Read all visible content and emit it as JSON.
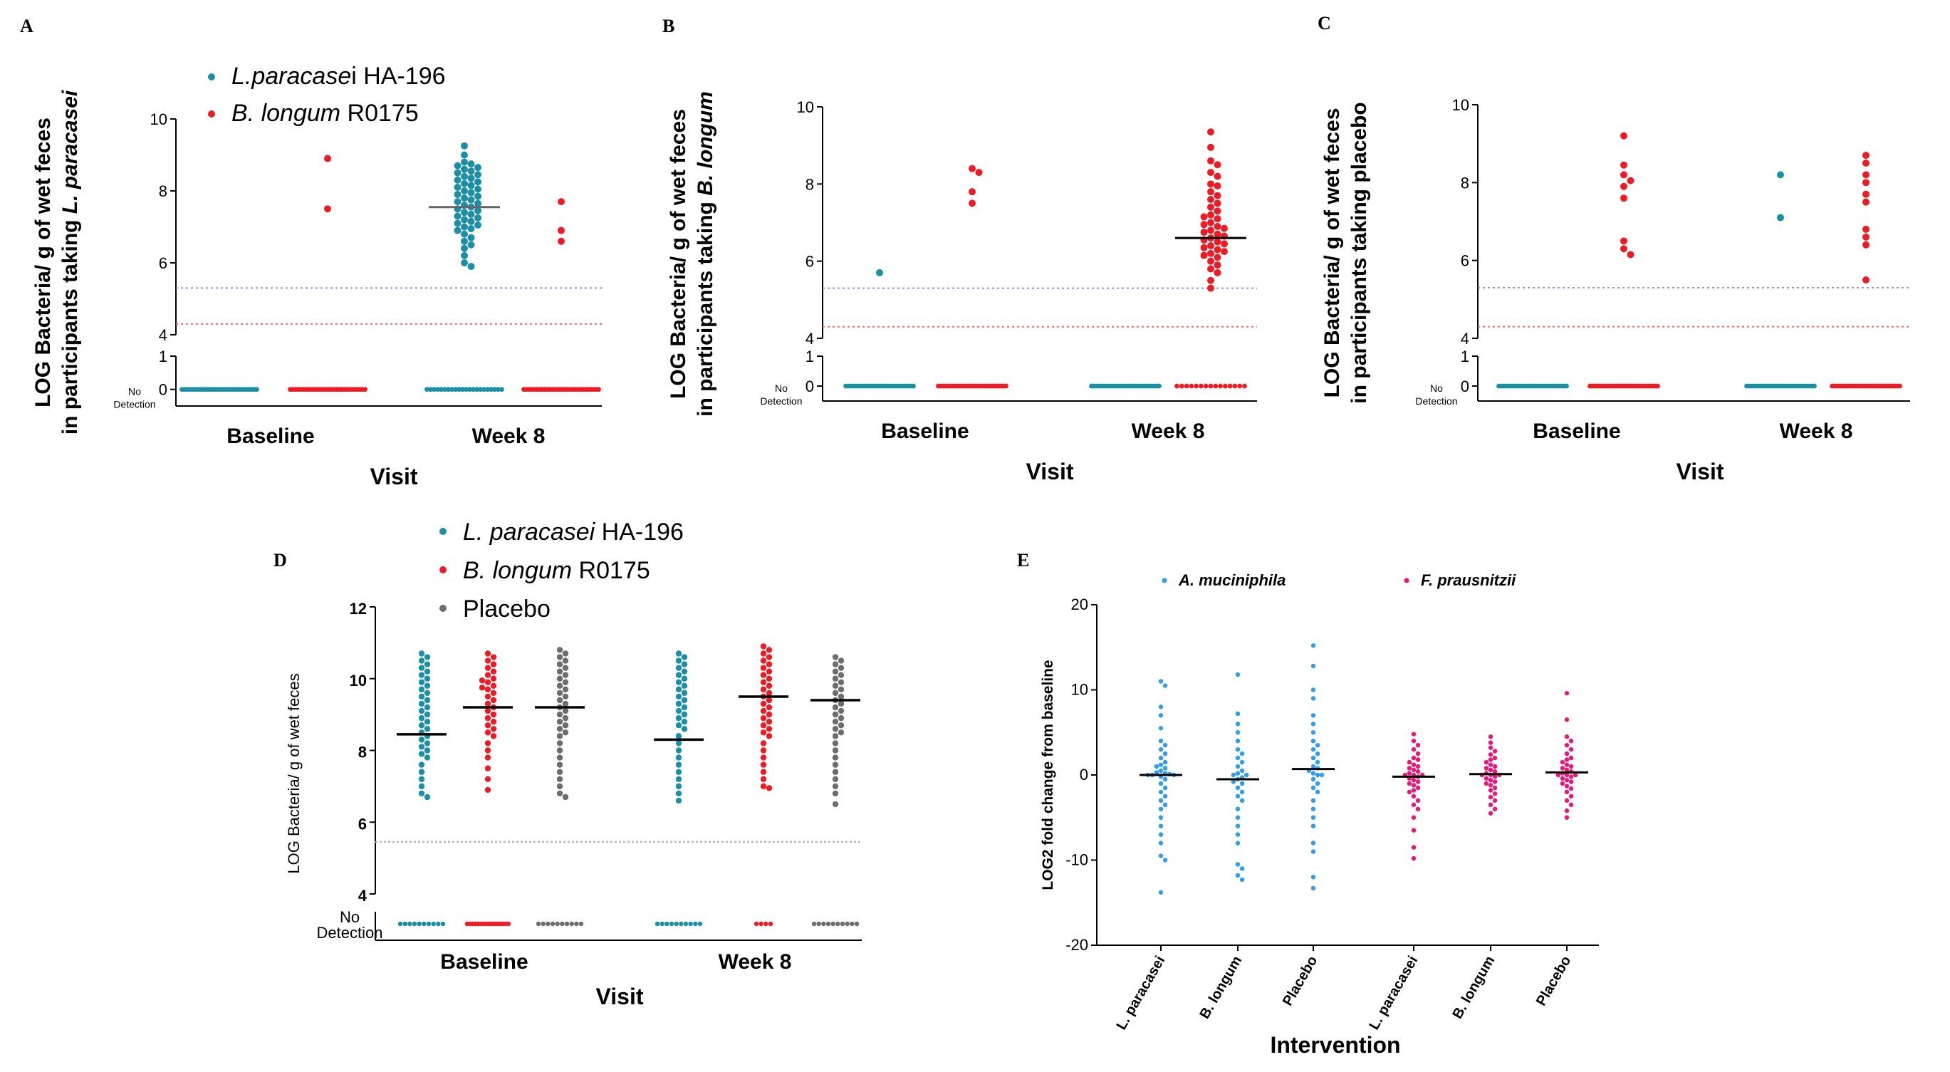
{
  "colors": {
    "teal": "#1b8fa5",
    "red": "#ed1c24",
    "gray": "#6d6d6d",
    "blue": "#2e9cf0",
    "pink": "#e9177a",
    "dashBlue": "#8f91e8",
    "dashRed": "#f06a6a",
    "dashGray": "#b8b8b8",
    "mean": "#000000"
  },
  "panels": [
    {
      "id": "A",
      "label": "A",
      "type": "scatter",
      "title": "",
      "ylabel_lines": [
        "LOG Bacteria/ g of wet feces",
        "in participants taking L. paracasei"
      ],
      "ylabel_italic": "L. paracasei",
      "xlabel": "Visit",
      "categories": [
        "Baseline",
        "Week 8"
      ],
      "no_detection_label": [
        "No",
        "Detection"
      ],
      "yticks_upper": [
        "10",
        "8",
        "6",
        "4"
      ],
      "yticks_lower": [
        "1",
        "0"
      ],
      "ylim_upper": [
        4,
        10
      ],
      "ylim_lower": [
        -0.5,
        1
      ],
      "legend": [
        {
          "name": "L.paracasei HA-196",
          "italic": "L.paracase",
          "rest": "i HA-196",
          "color": "teal"
        },
        {
          "name": "B. longum R0175",
          "italic": "B. longum",
          "rest": " R0175",
          "color": "red"
        }
      ],
      "thresholds": [
        {
          "value": 5.3,
          "color": "dashBlue"
        },
        {
          "value": 4.3,
          "color": "dashRed"
        }
      ],
      "series": [
        {
          "group": 0,
          "color": "teal",
          "detected": [],
          "nondetected_count": 30,
          "mean": null
        },
        {
          "group": 0,
          "color": "red",
          "detected": [
            8.9,
            7.5
          ],
          "nondetected_count": 30,
          "mean": null
        },
        {
          "group": 1,
          "color": "teal",
          "detected": [
            9.25,
            9.0,
            8.8,
            8.75,
            8.7,
            8.65,
            8.6,
            8.55,
            8.5,
            8.45,
            8.4,
            8.35,
            8.3,
            8.25,
            8.2,
            8.15,
            8.1,
            8.05,
            8.0,
            7.95,
            7.9,
            7.85,
            7.8,
            7.75,
            7.7,
            7.65,
            7.6,
            7.55,
            7.5,
            7.45,
            7.4,
            7.35,
            7.3,
            7.25,
            7.2,
            7.15,
            7.1,
            7.05,
            7.0,
            6.95,
            6.9,
            6.8,
            6.7,
            6.6,
            6.5,
            6.4,
            6.2,
            6.0,
            5.9
          ],
          "nondetected_count": 22,
          "mean": 7.55
        },
        {
          "group": 1,
          "color": "red",
          "detected": [
            7.7,
            6.9,
            6.6
          ],
          "nondetected_count": 30,
          "mean": null
        }
      ]
    },
    {
      "id": "B",
      "label": "B",
      "type": "scatter",
      "ylabel_lines": [
        "LOG Bacteria/ g of wet feces",
        "in participants taking B. longum"
      ],
      "ylabel_italic": "B. longum",
      "xlabel": "Visit",
      "categories": [
        "Baseline",
        "Week 8"
      ],
      "no_detection_label": [
        "No",
        "Detection"
      ],
      "yticks_upper": [
        "10",
        "8",
        "6",
        "4"
      ],
      "yticks_lower": [
        "1",
        "0"
      ],
      "ylim_upper": [
        4,
        10
      ],
      "ylim_lower": [
        -0.5,
        1
      ],
      "thresholds": [
        {
          "value": 5.3,
          "color": "dashBlue"
        },
        {
          "value": 4.3,
          "color": "dashRed"
        }
      ],
      "series": [
        {
          "group": 0,
          "color": "teal",
          "detected": [
            5.7
          ],
          "nondetected_count": 30,
          "mean": null
        },
        {
          "group": 0,
          "color": "red",
          "detected": [
            8.4,
            8.3,
            7.8,
            7.5
          ],
          "nondetected_count": 30,
          "mean": null
        },
        {
          "group": 1,
          "color": "teal",
          "detected": [],
          "nondetected_count": 30,
          "mean": null
        },
        {
          "group": 1,
          "color": "red",
          "detected": [
            9.35,
            8.95,
            8.6,
            8.5,
            8.3,
            8.2,
            8.0,
            7.95,
            7.8,
            7.7,
            7.6,
            7.5,
            7.4,
            7.3,
            7.2,
            7.15,
            7.1,
            7.0,
            6.95,
            6.9,
            6.85,
            6.8,
            6.75,
            6.7,
            6.65,
            6.6,
            6.55,
            6.5,
            6.45,
            6.4,
            6.35,
            6.3,
            6.25,
            6.2,
            6.15,
            6.1,
            6.0,
            5.9,
            5.8,
            5.7,
            5.5,
            5.3
          ],
          "nondetected_count": 15,
          "mean": 6.6
        }
      ]
    },
    {
      "id": "C",
      "label": "C",
      "type": "scatter",
      "ylabel_lines": [
        "LOG Bacteria/ g of wet feces",
        "in participants taking placebo"
      ],
      "ylabel_italic": "",
      "xlabel": "Visit",
      "categories": [
        "Baseline",
        "Week 8"
      ],
      "no_detection_label": [
        "No",
        "Detection"
      ],
      "yticks_upper": [
        "10",
        "8",
        "6",
        "4"
      ],
      "yticks_lower": [
        "1",
        "0"
      ],
      "ylim_upper": [
        4,
        10
      ],
      "ylim_lower": [
        -0.5,
        1
      ],
      "thresholds": [
        {
          "value": 5.3,
          "color": "dashBlue"
        },
        {
          "value": 4.3,
          "color": "dashRed"
        }
      ],
      "series": [
        {
          "group": 0,
          "color": "teal",
          "detected": [],
          "nondetected_count": 30,
          "mean": null
        },
        {
          "group": 0,
          "color": "red",
          "detected": [
            9.2,
            8.45,
            8.2,
            8.05,
            7.9,
            7.6,
            6.5,
            6.3,
            6.15
          ],
          "nondetected_count": 30,
          "mean": null
        },
        {
          "group": 1,
          "color": "teal",
          "detected": [
            8.2,
            7.1
          ],
          "nondetected_count": 30,
          "mean": null
        },
        {
          "group": 1,
          "color": "red",
          "detected": [
            8.7,
            8.5,
            8.2,
            8.0,
            7.7,
            7.5,
            6.8,
            6.6,
            6.4,
            5.5
          ],
          "nondetected_count": 30,
          "mean": null
        }
      ]
    },
    {
      "id": "D",
      "label": "D",
      "type": "scatter",
      "ylabel_lines": [
        "LOG Bacteria/ g of wet feces"
      ],
      "xlabel": "Visit",
      "categories": [
        "Baseline",
        "Week 8"
      ],
      "no_detection_label": [
        "No",
        "Detection"
      ],
      "yticks_upper": [
        "12",
        "10",
        "8",
        "6",
        "4"
      ],
      "ylim_upper": [
        4,
        12
      ],
      "legend": [
        {
          "name": "L. paracasei HA-196",
          "italic": "L. paracasei",
          "rest": " HA-196",
          "color": "teal"
        },
        {
          "name": "B. longum R0175",
          "italic": "B. longum",
          "rest": " R0175",
          "color": "red"
        },
        {
          "name": "Placebo",
          "italic": "",
          "rest": "Placebo",
          "color": "gray"
        }
      ],
      "thresholds": [
        {
          "value": 5.45,
          "color": "dashGray"
        }
      ],
      "series": [
        {
          "group": 0,
          "color": "teal",
          "detected": [
            10.7,
            10.6,
            10.5,
            10.4,
            10.3,
            10.2,
            10.1,
            10.0,
            9.9,
            9.8,
            9.7,
            9.6,
            9.5,
            9.4,
            9.3,
            9.2,
            9.1,
            9.0,
            8.9,
            8.8,
            8.7,
            8.6,
            8.5,
            8.4,
            8.3,
            8.2,
            8.1,
            8.0,
            7.9,
            7.8,
            7.6,
            7.4,
            7.2,
            7.0,
            6.8,
            6.7
          ],
          "nondetected_count": 10,
          "mean": 8.45
        },
        {
          "group": 0,
          "color": "red",
          "detected": [
            10.7,
            10.6,
            10.5,
            10.4,
            10.3,
            10.2,
            10.1,
            10.0,
            9.95,
            9.9,
            9.8,
            9.75,
            9.7,
            9.6,
            9.5,
            9.4,
            9.3,
            9.2,
            9.1,
            9.0,
            8.9,
            8.8,
            8.7,
            8.6,
            8.5,
            8.4,
            8.2,
            8.0,
            7.8,
            7.5,
            7.2,
            6.9
          ],
          "nondetected_count": 16,
          "mean": 9.2
        },
        {
          "group": 0,
          "color": "gray",
          "detected": [
            10.8,
            10.7,
            10.6,
            10.5,
            10.4,
            10.3,
            10.2,
            10.1,
            10.0,
            9.9,
            9.8,
            9.7,
            9.6,
            9.5,
            9.4,
            9.3,
            9.2,
            9.1,
            9.0,
            8.9,
            8.8,
            8.7,
            8.6,
            8.5,
            8.4,
            8.2,
            8.0,
            7.8,
            7.6,
            7.4,
            7.2,
            7.0,
            6.8,
            6.7
          ],
          "nondetected_count": 10,
          "mean": 9.2
        },
        {
          "group": 1,
          "color": "teal",
          "detected": [
            10.7,
            10.6,
            10.5,
            10.4,
            10.3,
            10.2,
            10.1,
            10.0,
            9.9,
            9.8,
            9.7,
            9.6,
            9.5,
            9.4,
            9.3,
            9.2,
            9.1,
            9.0,
            8.9,
            8.8,
            8.7,
            8.6,
            8.4,
            8.2,
            8.0,
            7.8,
            7.6,
            7.4,
            7.2,
            7.0,
            6.8,
            6.6
          ],
          "nondetected_count": 10,
          "mean": 8.3
        },
        {
          "group": 1,
          "color": "red",
          "detected": [
            10.9,
            10.8,
            10.7,
            10.6,
            10.5,
            10.4,
            10.3,
            10.2,
            10.1,
            10.0,
            9.9,
            9.8,
            9.7,
            9.6,
            9.5,
            9.4,
            9.3,
            9.2,
            9.1,
            9.0,
            8.9,
            8.8,
            8.7,
            8.6,
            8.5,
            8.4,
            8.2,
            8.0,
            7.8,
            7.6,
            7.4,
            7.2,
            7.0,
            6.95
          ],
          "nondetected_count": 4,
          "mean": 9.5
        },
        {
          "group": 1,
          "color": "gray",
          "detected": [
            10.6,
            10.5,
            10.4,
            10.3,
            10.2,
            10.1,
            10.0,
            9.9,
            9.8,
            9.7,
            9.6,
            9.5,
            9.4,
            9.3,
            9.2,
            9.1,
            9.0,
            8.9,
            8.8,
            8.7,
            8.6,
            8.5,
            8.4,
            8.2,
            8.0,
            7.8,
            7.6,
            7.4,
            7.2,
            7.0,
            6.8,
            6.5
          ],
          "nondetected_count": 10,
          "mean": 9.4
        }
      ]
    },
    {
      "id": "E",
      "label": "E",
      "type": "scatter",
      "ylabel_lines": [
        "LOG2 fold change from baseline"
      ],
      "xlabel": "Intervention",
      "categories": [
        "L. paracasei",
        "B. longum",
        "Placebo",
        "L. paracasei",
        "B. longum",
        "Placebo"
      ],
      "yticks": [
        "20",
        "10",
        "0",
        "-10",
        "-20"
      ],
      "ylim": [
        -20,
        20
      ],
      "legend": [
        {
          "name": "A. muciniphila",
          "color": "blue"
        },
        {
          "name": "F. prausnitzii",
          "color": "pink"
        }
      ],
      "series": [
        {
          "group": 0,
          "color": "blue",
          "values": [
            11.0,
            10.5,
            8.0,
            7.0,
            5.5,
            4.0,
            3.5,
            3.0,
            2.5,
            2.0,
            1.5,
            1.2,
            1.0,
            0.8,
            0.5,
            0.3,
            0.2,
            0.1,
            0,
            0,
            0,
            -0.2,
            -0.5,
            -1.0,
            -1.5,
            -2.0,
            -2.5,
            -3.0,
            -3.5,
            -4.0,
            -5.0,
            -6.0,
            -7.0,
            -8.0,
            -9.5,
            -10.0,
            -13.8
          ],
          "mean": 0.0
        },
        {
          "group": 1,
          "color": "blue",
          "values": [
            11.8,
            7.2,
            6.0,
            5.0,
            4.0,
            3.0,
            2.5,
            2.0,
            1.5,
            1.0,
            0.5,
            0.2,
            0,
            0,
            -0.3,
            -0.5,
            -0.8,
            -1.0,
            -1.5,
            -2.0,
            -2.5,
            -3.0,
            -4.0,
            -5.0,
            -6.0,
            -7.0,
            -8.0,
            -10.5,
            -11.0,
            -11.8,
            -12.3
          ],
          "mean": -0.5
        },
        {
          "group": 2,
          "color": "blue",
          "values": [
            15.2,
            12.8,
            10.0,
            9.0,
            7.0,
            6.0,
            5.0,
            4.0,
            3.5,
            3.0,
            2.5,
            2.0,
            1.5,
            1.0,
            0.8,
            0.5,
            0.2,
            0,
            0,
            -0.5,
            -1.0,
            -1.5,
            -2.0,
            -3.0,
            -4.0,
            -5.0,
            -6.0,
            -8.0,
            -9.0,
            -12.0,
            -13.3
          ],
          "mean": 0.7
        },
        {
          "group": 3,
          "color": "pink",
          "values": [
            4.8,
            4.0,
            3.5,
            3.0,
            2.5,
            2.0,
            1.8,
            1.5,
            1.2,
            1.0,
            0.8,
            0.6,
            0.4,
            0.2,
            0,
            0,
            0,
            -0.2,
            -0.4,
            -0.6,
            -0.8,
            -1.0,
            -1.2,
            -1.5,
            -1.8,
            -2.0,
            -2.5,
            -3.0,
            -3.5,
            -4.0,
            -5.0,
            -6.5,
            -8.5,
            -9.8
          ],
          "mean": -0.2
        },
        {
          "group": 4,
          "color": "pink",
          "values": [
            4.5,
            3.8,
            3.2,
            2.8,
            2.4,
            2.0,
            1.8,
            1.5,
            1.2,
            1.0,
            0.8,
            0.6,
            0.4,
            0.2,
            0,
            0,
            0,
            -0.2,
            -0.4,
            -0.6,
            -0.8,
            -1.0,
            -1.2,
            -1.5,
            -1.8,
            -2.2,
            -2.6,
            -3.0,
            -3.5,
            -4.0,
            -4.5
          ],
          "mean": 0.1
        },
        {
          "group": 5,
          "color": "pink",
          "values": [
            9.6,
            6.5,
            4.5,
            4.0,
            3.5,
            3.0,
            2.5,
            2.0,
            1.8,
            1.5,
            1.2,
            1.0,
            0.8,
            0.6,
            0.4,
            0.2,
            0,
            0,
            0,
            -0.2,
            -0.4,
            -0.6,
            -0.8,
            -1.0,
            -1.3,
            -1.6,
            -2.0,
            -2.5,
            -3.0,
            -3.5,
            -4.2,
            -5.0
          ],
          "mean": 0.3
        }
      ]
    }
  ]
}
